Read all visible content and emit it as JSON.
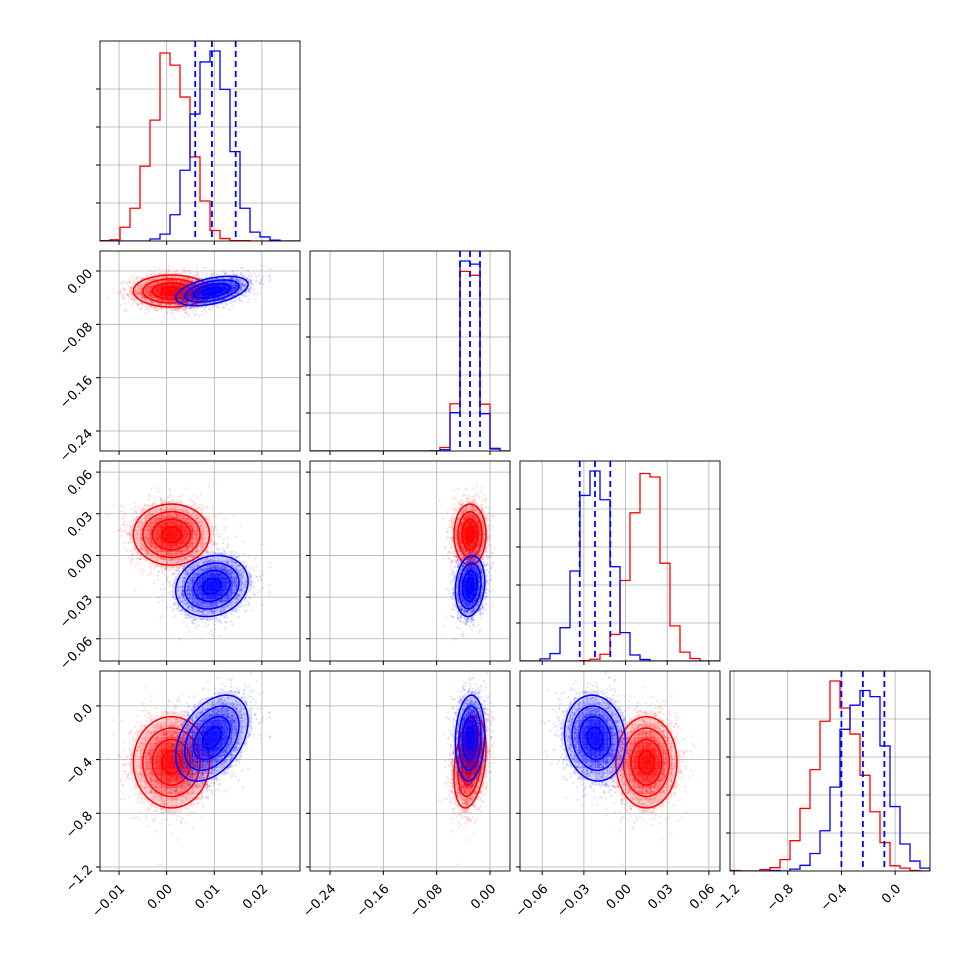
{
  "chart_data": {
    "type": "corner",
    "title": "",
    "parameters": [
      {
        "label": "",
        "range": [
          -0.014,
          0.028
        ],
        "ticks": [
          "−0.01",
          "0.00",
          "0.01",
          "0.02"
        ],
        "tick_values": [
          -0.01,
          0.0,
          0.01,
          0.02
        ]
      },
      {
        "label": "",
        "range": [
          -0.27,
          0.03
        ],
        "ticks": [
          "−0.24",
          "−0.16",
          "−0.08",
          "0.00"
        ],
        "tick_values": [
          -0.24,
          -0.16,
          -0.08,
          0.0
        ]
      },
      {
        "label": "",
        "range": [
          -0.076,
          0.068
        ],
        "ticks": [
          "−0.06",
          "−0.03",
          "0.00",
          "0.03",
          "0.06"
        ],
        "tick_values": [
          -0.06,
          -0.03,
          0.0,
          0.03,
          0.06
        ]
      },
      {
        "label": "",
        "range": [
          -1.23,
          0.26
        ],
        "ticks": [
          "−1.2",
          "−0.8",
          "−0.4",
          "0.0"
        ],
        "tick_values": [
          -1.2,
          -0.8,
          -0.4,
          0.0
        ]
      }
    ],
    "series": [
      {
        "name": "",
        "color": "#ff0000",
        "mean": [
          0.001,
          -0.03,
          0.015,
          -0.42
        ],
        "sigma": [
          0.004,
          0.012,
          0.011,
          0.17
        ],
        "rho": [
          [
            1,
            0,
            0,
            0
          ],
          [
            0,
            1,
            0,
            0.3
          ],
          [
            0,
            0,
            1,
            0
          ],
          [
            0,
            0.3,
            0,
            1
          ]
        ]
      },
      {
        "name": "",
        "color": "#0000ff",
        "mean": [
          0.0095,
          -0.03,
          -0.022,
          -0.24
        ],
        "sigma": [
          0.0038,
          0.011,
          0.011,
          0.16
        ],
        "rho": [
          [
            1,
            0.45,
            0.15,
            0.4
          ],
          [
            0.45,
            1,
            0.15,
            0.1
          ],
          [
            0.15,
            0.15,
            1,
            -0.1
          ],
          [
            0.4,
            0.1,
            -0.1,
            1
          ]
        ]
      }
    ],
    "quantile_lines": {
      "series_color": "#0000ff",
      "values": [
        [
          0.006,
          0.0095,
          0.0145
        ],
        [
          -0.045,
          -0.03,
          -0.015
        ],
        [
          -0.033,
          -0.022,
          -0.011
        ],
        [
          -0.4,
          -0.24,
          -0.08
        ]
      ]
    },
    "grid": true,
    "contour_levels": [
      0.5,
      1.0,
      1.5,
      2.0
    ]
  }
}
